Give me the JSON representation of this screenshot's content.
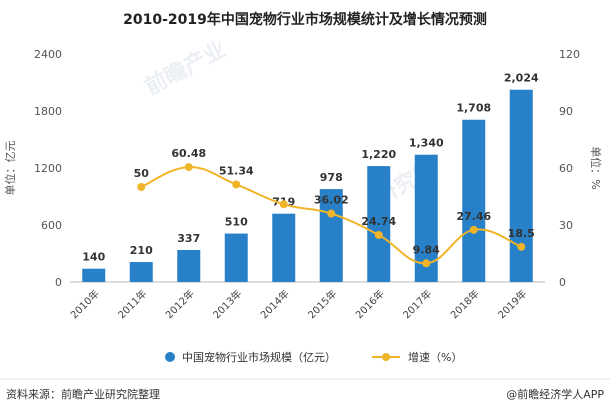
{
  "chart_data": {
    "type": "bar",
    "title": "2010-2019年中国宠物行业市场规模统计及增长情况预测",
    "categories": [
      "2010年",
      "2011年",
      "2012年",
      "2013年",
      "2014年",
      "2015年",
      "2016年",
      "2017年",
      "2018年",
      "2019年"
    ],
    "series": [
      {
        "name": "中国宠物行业市场规模（亿元）",
        "type": "bar",
        "axis": "left",
        "color": "#2780c8",
        "values": [
          140,
          210,
          337,
          510,
          719,
          978,
          1220,
          1340,
          1708,
          2024
        ],
        "labels": [
          "140",
          "210",
          "337",
          "510",
          "719",
          "978",
          "1,220",
          "1,340",
          "1,708",
          "2,024"
        ]
      },
      {
        "name": "增速（%）",
        "type": "line",
        "axis": "right",
        "color": "#f0b428",
        "values": [
          null,
          50,
          60.48,
          51.34,
          40.9,
          36.02,
          24.74,
          9.84,
          27.46,
          18.5
        ],
        "labels": [
          "",
          "50",
          "60.48",
          "51.34",
          "",
          "36.02",
          "24.74",
          "9.84",
          "27.46",
          "18.5"
        ]
      }
    ],
    "ylabel_left": "单位：亿元",
    "ylabel_right": "单位：%",
    "ylim_left": [
      0,
      2400
    ],
    "yticks_left": [
      "0",
      "600",
      "1200",
      "1800",
      "2400"
    ],
    "ylim_right": [
      0,
      120
    ],
    "yticks_right": [
      "0",
      "30",
      "60",
      "90",
      "120"
    ],
    "legend_position": "bottom",
    "grid": false
  },
  "footer": {
    "source": "资料来源：前瞻产业研究院整理",
    "brand": "@前瞻经济学人APP"
  },
  "watermark": {
    "text1": "前瞻产业",
    "text2": "研究院"
  }
}
